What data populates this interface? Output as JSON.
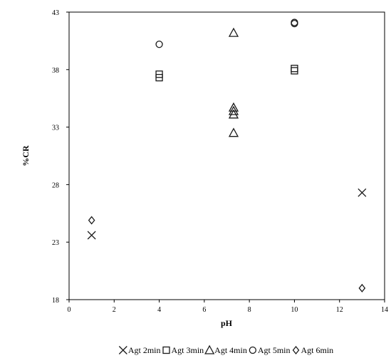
{
  "chart_data": {
    "type": "scatter",
    "xlabel": "pH",
    "ylabel": "%CR",
    "xlim": [
      0,
      14
    ],
    "ylim": [
      18,
      43
    ],
    "xticks": [
      "0",
      "2",
      "4",
      "6",
      "8",
      "10",
      "12",
      "14"
    ],
    "yticks": [
      "18",
      "23",
      "28",
      "33",
      "38",
      "43"
    ],
    "legend_position": "bottom",
    "grid": false,
    "series": [
      {
        "name": "Agt 2min",
        "marker": "x",
        "points": [
          [
            1,
            23.6
          ],
          [
            13,
            27.3
          ]
        ]
      },
      {
        "name": "Agt 3min",
        "marker": "square",
        "points": [
          [
            4,
            37.6
          ],
          [
            4,
            37.3
          ],
          [
            10,
            38.1
          ],
          [
            10,
            37.9
          ]
        ]
      },
      {
        "name": "Agt 4min",
        "marker": "triangle",
        "points": [
          [
            7.3,
            41.2
          ],
          [
            7.3,
            34.7
          ],
          [
            7.3,
            34.4
          ],
          [
            7.3,
            34.1
          ],
          [
            7.3,
            32.5
          ]
        ]
      },
      {
        "name": "Agt 5min",
        "marker": "circle",
        "points": [
          [
            4,
            40.2
          ],
          [
            10,
            42.1
          ],
          [
            10,
            42.0
          ]
        ]
      },
      {
        "name": "Agt 6min",
        "marker": "diamond",
        "points": [
          [
            1,
            24.9
          ],
          [
            13,
            19.0
          ]
        ]
      }
    ]
  }
}
